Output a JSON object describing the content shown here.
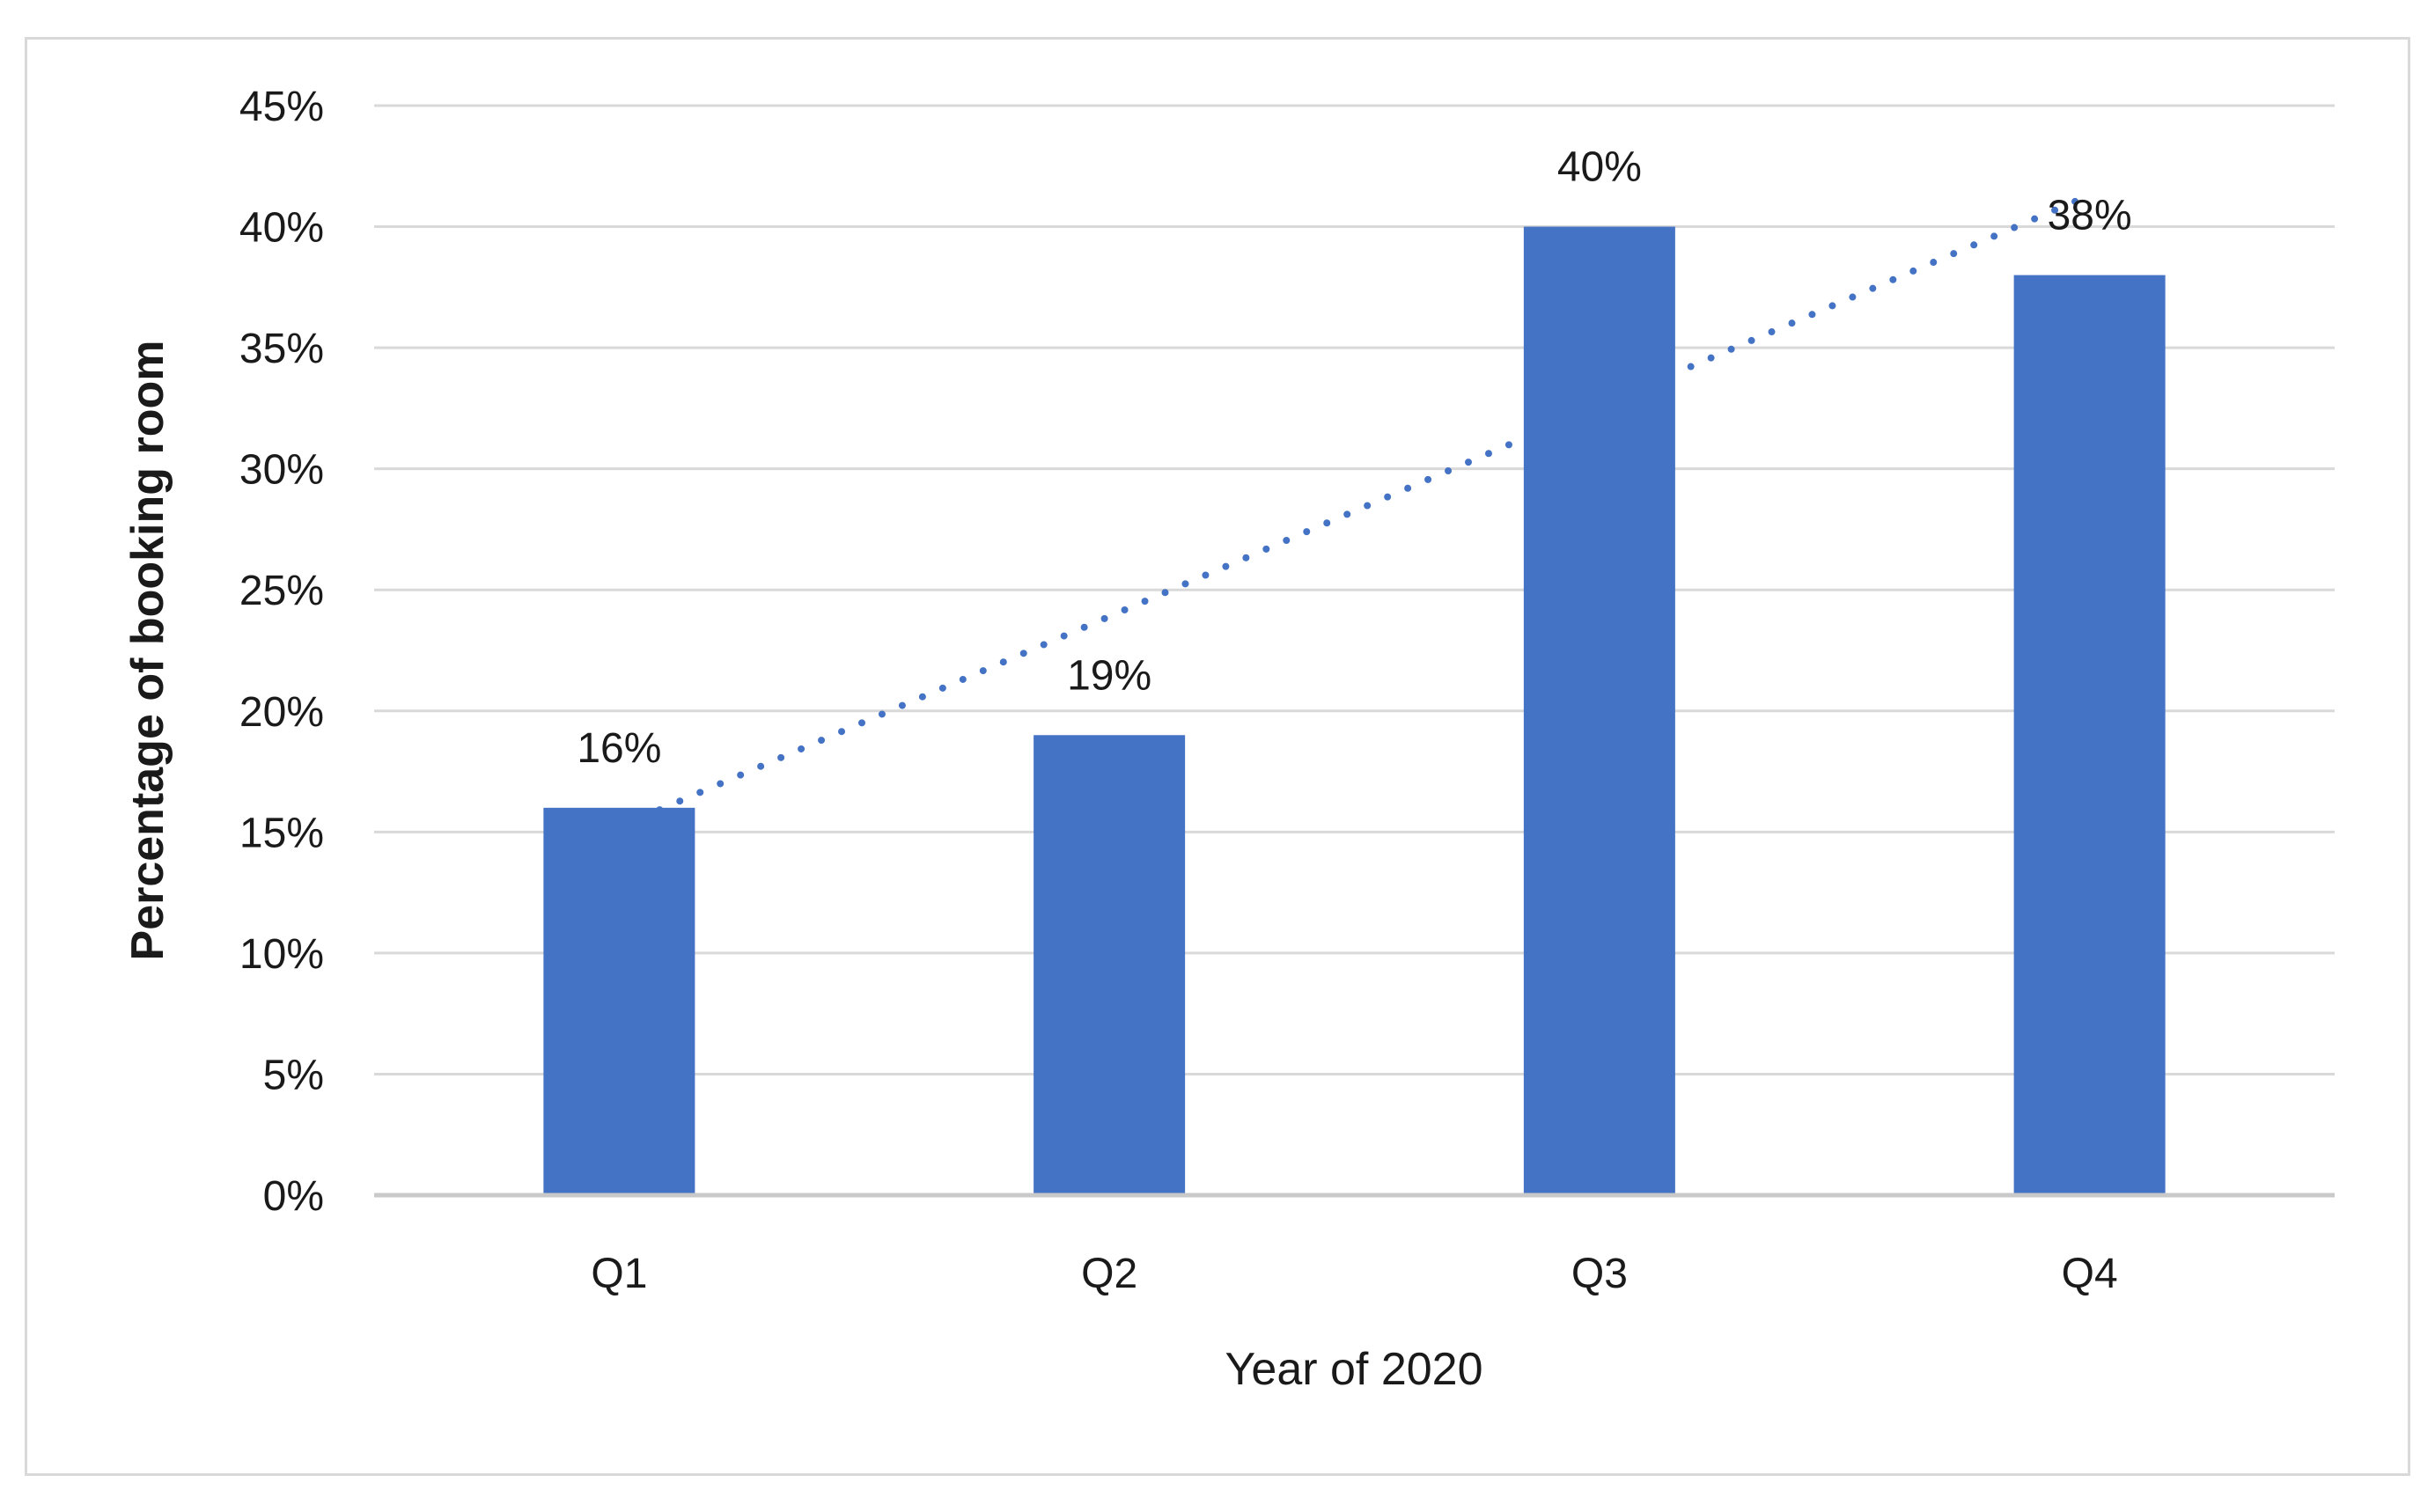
{
  "chart_data": {
    "type": "bar",
    "title": "",
    "categories": [
      "Q1",
      "Q2",
      "Q3",
      "Q4"
    ],
    "values": [
      16,
      19,
      40,
      38
    ],
    "data_labels": [
      "16%",
      "19%",
      "40%",
      "38%"
    ],
    "xlabel": "Year of 2020",
    "ylabel": "Percentage of booking room",
    "ylim": [
      0,
      45
    ],
    "ytick_step": 5,
    "ytick_labels": [
      "0%",
      "5%",
      "10%",
      "15%",
      "20%",
      "25%",
      "30%",
      "35%",
      "40%",
      "45%"
    ],
    "grid": true,
    "legend": false,
    "bar_color": "#4472C4",
    "trendline": {
      "type": "linear",
      "style": "dotted",
      "color": "#4472C4"
    },
    "gridline_color": "#D9D9D9",
    "axis_line_color": "#C9C9C9",
    "text_color": "#1A1A1A"
  },
  "frame": {
    "background": "#FFFFFF",
    "border_color": "#D9D9D9"
  }
}
